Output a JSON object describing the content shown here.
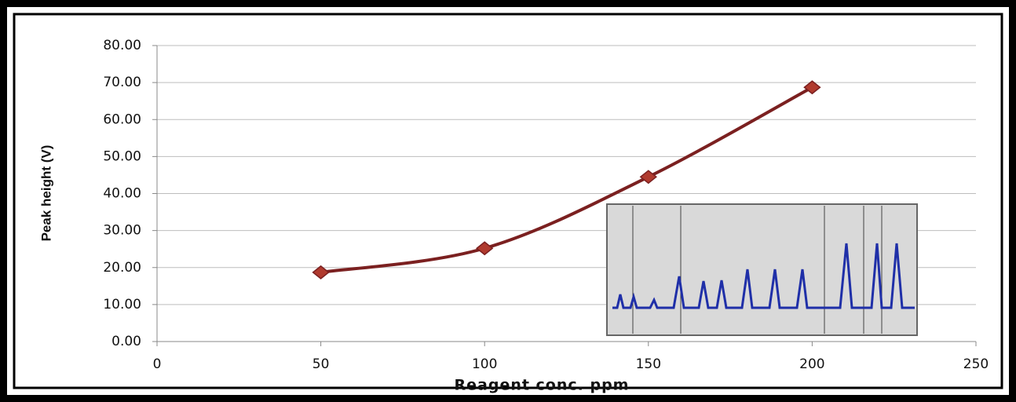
{
  "chart_data": {
    "type": "line",
    "x_label": "Reagent conc. ppm",
    "y_label": "Peak height (V)",
    "x": [
      50,
      100,
      150,
      200
    ],
    "values": [
      18.7,
      25.2,
      44.5,
      68.7
    ],
    "color": "#7b2020",
    "marker_color": "#b03a2e",
    "xlim": [
      0,
      250
    ],
    "xticks": [
      0,
      50,
      100,
      150,
      200,
      250
    ],
    "ylim": [
      0,
      80
    ],
    "yticks": [
      {
        "value": 0,
        "label": "0.00"
      },
      {
        "value": 10,
        "label": "10.00"
      },
      {
        "value": 20,
        "label": "20.00"
      },
      {
        "value": 30,
        "label": "30.00"
      },
      {
        "value": 40,
        "label": "40.00"
      },
      {
        "value": 50,
        "label": "50.00"
      },
      {
        "value": 60,
        "label": "60.00"
      },
      {
        "value": 70,
        "label": "70.00"
      },
      {
        "value": 80,
        "label": "80.00"
      }
    ],
    "grid": true,
    "smooth": true
  }
}
